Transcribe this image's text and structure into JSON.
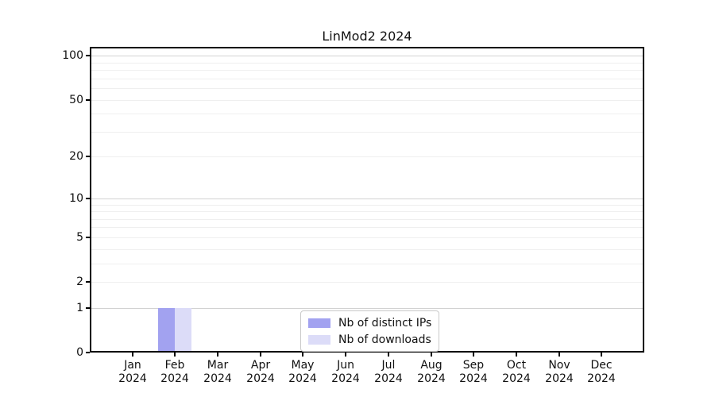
{
  "figure": {
    "background": "#ffffff",
    "spine_color": "#000000",
    "grid_major_color": "#d2d2d2",
    "grid_minor_color": "#efefef",
    "legend_border_color": "#c9c9c9"
  },
  "chart_data": {
    "type": "bar",
    "title": "LinMod2 2024",
    "xlabel": "",
    "ylabel": "",
    "categories": [
      "Jan",
      "Feb",
      "Mar",
      "Apr",
      "May",
      "Jun",
      "Jul",
      "Aug",
      "Sep",
      "Oct",
      "Nov",
      "Dec"
    ],
    "category_year": "2024",
    "series": [
      {
        "name": "Nb of distinct IPs",
        "color": "#a2a2f0",
        "values": [
          0,
          1,
          0,
          0,
          0,
          0,
          0,
          0,
          0,
          0,
          0,
          0
        ]
      },
      {
        "name": "Nb of downloads",
        "color": "#dcdcf8",
        "values": [
          0,
          1,
          0,
          0,
          0,
          0,
          0,
          0,
          0,
          0,
          0,
          0
        ]
      }
    ],
    "y_scale": "log1p",
    "ylim": [
      0,
      115
    ],
    "y_ticks": [
      0,
      1,
      2,
      5,
      10,
      20,
      50,
      100
    ],
    "y_major_gridlines": [
      1,
      10,
      100
    ],
    "y_minor_gridlines": [
      2,
      3,
      4,
      5,
      6,
      7,
      8,
      9,
      20,
      30,
      40,
      50,
      60,
      70,
      80,
      90
    ],
    "grid": true,
    "legend_position": "lower center",
    "bar_group_width_fraction": 0.8
  }
}
